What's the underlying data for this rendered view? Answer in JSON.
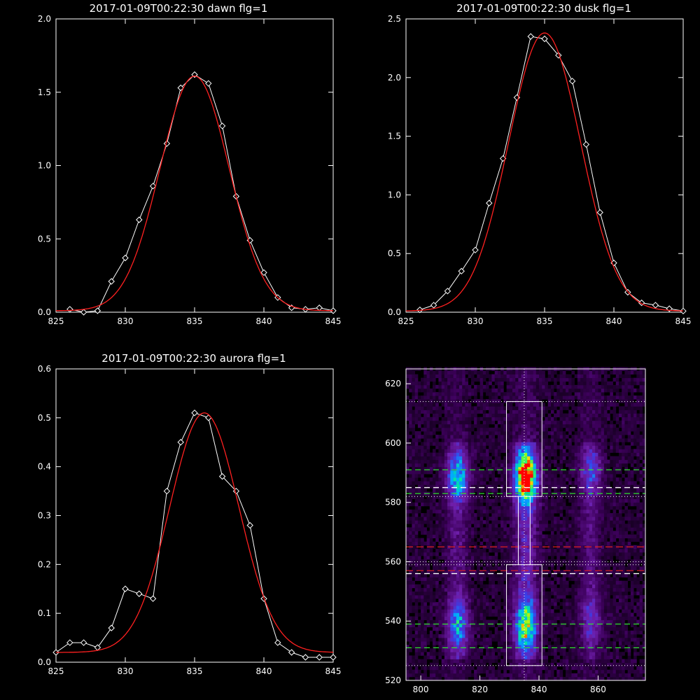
{
  "colors": {
    "background": "#000000",
    "axes": "#ffffff",
    "data_line": "#ffffff",
    "fit_line": "#ff2020"
  },
  "chart_data": [
    {
      "type": "line",
      "title": "2017-01-09T00:22:30 dawn flg=1",
      "xlim": [
        825,
        845
      ],
      "ylim": [
        0,
        2.0
      ],
      "x_ticks": [
        "825",
        "830",
        "835",
        "840",
        "845"
      ],
      "y_ticks": [
        "0.0",
        "0.5",
        "1.0",
        "1.5",
        "2.0"
      ],
      "series": [
        {
          "style": "data-diamonds",
          "x": [
            826,
            827,
            828,
            829,
            830,
            831,
            832,
            833,
            834,
            835,
            836,
            837,
            838,
            839,
            840,
            841,
            842,
            843,
            844,
            845
          ],
          "y": [
            0.02,
            0.0,
            0.01,
            0.21,
            0.37,
            0.63,
            0.86,
            1.15,
            1.53,
            1.62,
            1.56,
            1.27,
            0.79,
            0.49,
            0.27,
            0.1,
            0.03,
            0.02,
            0.03,
            0.01
          ]
        },
        {
          "style": "fit",
          "fit": "gaussian",
          "amplitude": 1.6,
          "center": 835.0,
          "sigma": 2.5,
          "offset": 0.01
        }
      ]
    },
    {
      "type": "line",
      "title": "2017-01-09T00:22:30 dusk flg=1",
      "xlim": [
        825,
        845
      ],
      "ylim": [
        0,
        2.5
      ],
      "x_ticks": [
        "825",
        "830",
        "835",
        "840",
        "845"
      ],
      "y_ticks": [
        "0.0",
        "0.5",
        "1.0",
        "1.5",
        "2.0",
        "2.5"
      ],
      "series": [
        {
          "style": "data-diamonds",
          "x": [
            826,
            827,
            828,
            829,
            830,
            831,
            832,
            833,
            834,
            835,
            836,
            837,
            838,
            839,
            840,
            841,
            842,
            843,
            844,
            845
          ],
          "y": [
            0.02,
            0.06,
            0.18,
            0.35,
            0.53,
            0.93,
            1.31,
            1.83,
            2.35,
            2.33,
            2.19,
            1.97,
            1.43,
            0.85,
            0.42,
            0.17,
            0.08,
            0.06,
            0.03,
            0.01
          ]
        },
        {
          "style": "fit",
          "fit": "gaussian",
          "amplitude": 2.37,
          "center": 835.0,
          "sigma": 2.6,
          "offset": 0.01
        }
      ]
    },
    {
      "type": "line",
      "title": "2017-01-09T00:22:30 aurora flg=1",
      "xlim": [
        825,
        845
      ],
      "ylim": [
        0,
        0.6
      ],
      "x_ticks": [
        "825",
        "830",
        "835",
        "840",
        "845"
      ],
      "y_ticks": [
        "0.0",
        "0.1",
        "0.2",
        "0.3",
        "0.4",
        "0.5",
        "0.6"
      ],
      "series": [
        {
          "style": "data-diamonds",
          "x": [
            825,
            826,
            827,
            828,
            829,
            830,
            831,
            832,
            833,
            834,
            835,
            836,
            837,
            838,
            839,
            840,
            841,
            842,
            843,
            844,
            845
          ],
          "y": [
            0.02,
            0.04,
            0.04,
            0.03,
            0.07,
            0.15,
            0.14,
            0.13,
            0.35,
            0.45,
            0.51,
            0.5,
            0.38,
            0.35,
            0.28,
            0.13,
            0.04,
            0.02,
            0.01,
            0.01,
            0.01
          ]
        },
        {
          "style": "fit",
          "fit": "gaussian",
          "amplitude": 0.49,
          "center": 835.7,
          "sigma": 2.5,
          "offset": 0.02
        }
      ]
    },
    {
      "type": "heatmap",
      "xlim": [
        795,
        876
      ],
      "ylim": [
        520,
        625
      ],
      "x_ticks": [
        "800",
        "820",
        "840",
        "860"
      ],
      "y_ticks": [
        "520",
        "540",
        "560",
        "580",
        "600",
        "620"
      ],
      "emission_columns_x": [
        812,
        835,
        857
      ],
      "emission_blobs": [
        {
          "x": 835,
          "y": 588,
          "intensity": 1.0
        },
        {
          "x": 835,
          "y": 538,
          "intensity": 0.55
        },
        {
          "x": 812,
          "y": 588,
          "intensity": 0.45
        },
        {
          "x": 812,
          "y": 538,
          "intensity": 0.4
        },
        {
          "x": 857,
          "y": 590,
          "intensity": 0.22
        },
        {
          "x": 857,
          "y": 540,
          "intensity": 0.15
        }
      ],
      "boxes": [
        {
          "x": [
            829,
            841
          ],
          "y": [
            582,
            614
          ]
        },
        {
          "x": [
            829,
            841
          ],
          "y": [
            525,
            559
          ]
        }
      ],
      "connector_x": [
        833,
        837
      ],
      "vertical_dotted_x": 835,
      "h_dotted_y": [
        614,
        582,
        560,
        559,
        525
      ],
      "h_green_dashed_y": [
        591,
        583,
        539,
        531
      ],
      "h_white_dashed_y": [
        585,
        556
      ],
      "h_red_dashed_y": [
        565,
        557
      ]
    }
  ]
}
